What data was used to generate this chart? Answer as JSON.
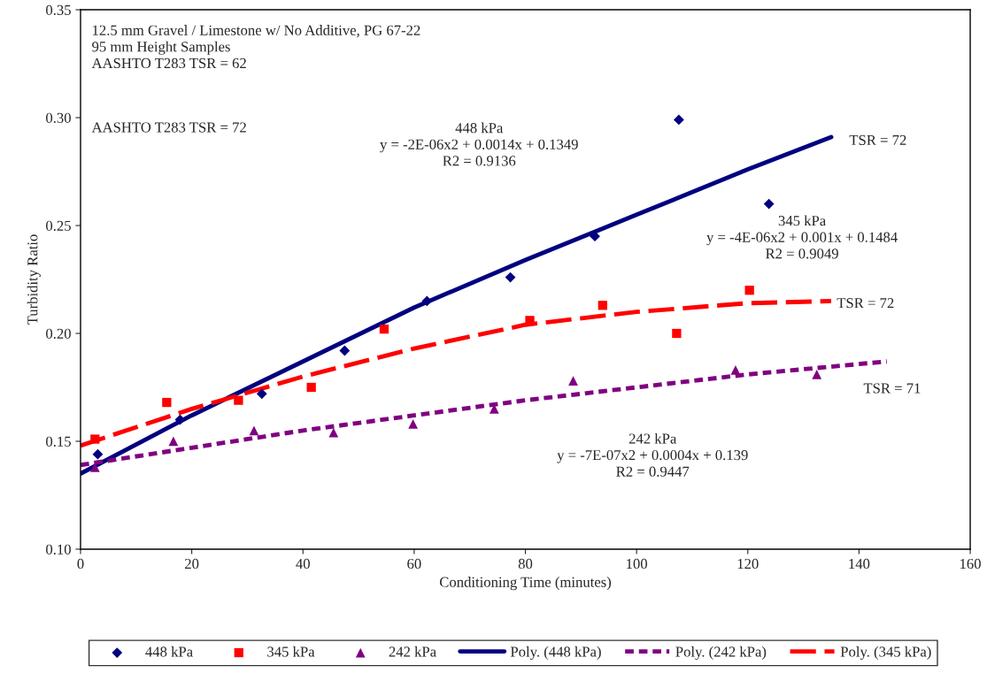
{
  "chart_data": {
    "type": "scatter",
    "xlabel": "Conditioning Time (minutes)",
    "ylabel": "Turbidity Ratio",
    "xlim": [
      0,
      160
    ],
    "xticks": [
      0,
      20,
      40,
      60,
      80,
      100,
      120,
      140,
      160
    ],
    "ylim": [
      0.1,
      0.35
    ],
    "yticks": [
      {
        "value": 0.1,
        "label": "0.10"
      },
      {
        "value": 0.15,
        "label": "0.15"
      },
      {
        "value": 0.2,
        "label": "0.20"
      },
      {
        "value": 0.25,
        "label": "0.25"
      },
      {
        "value": 0.3,
        "label": "0.30"
      },
      {
        "value": 0.35,
        "label": "0.35"
      }
    ],
    "grid": false,
    "legend": "bottom",
    "series": [
      {
        "name": "448 kPa",
        "marker": "diamond",
        "color": "#000080",
        "x": [
          3.1,
          17.9,
          32.6,
          47.5,
          62.3,
          77.3,
          92.5,
          107.6,
          123.8
        ],
        "values": [
          0.144,
          0.16,
          0.172,
          0.192,
          0.215,
          0.226,
          0.245,
          0.299,
          0.26
        ]
      },
      {
        "name": "345 kPa",
        "marker": "square",
        "color": "#ff0000",
        "x": [
          2.6,
          15.5,
          28.4,
          41.5,
          54.6,
          80.8,
          93.9,
          107.2,
          120.3
        ],
        "values": [
          0.151,
          0.168,
          0.169,
          0.175,
          0.202,
          0.206,
          0.213,
          0.2,
          0.22
        ]
      },
      {
        "name": "242 kPa",
        "marker": "triangle",
        "color": "#800080",
        "x": [
          2.6,
          16.7,
          31.2,
          45.5,
          59.8,
          74.4,
          88.6,
          117.8,
          132.4
        ],
        "values": [
          0.138,
          0.15,
          0.155,
          0.154,
          0.158,
          0.165,
          0.178,
          0.183,
          0.181
        ]
      },
      {
        "name": "Poly. (448 kPa)",
        "type": "line",
        "line_style": "solid",
        "color": "#000080",
        "x": [
          0,
          20,
          40,
          60,
          80,
          100,
          120,
          135
        ],
        "values": [
          0.135,
          0.162,
          0.187,
          0.212,
          0.234,
          0.255,
          0.276,
          0.291
        ]
      },
      {
        "name": "Poly. (242 kPa)",
        "type": "line",
        "line_style": "dotted",
        "color": "#800080",
        "x": [
          0,
          20,
          40,
          60,
          80,
          100,
          120,
          145
        ],
        "values": [
          0.139,
          0.147,
          0.155,
          0.162,
          0.169,
          0.175,
          0.181,
          0.187
        ]
      },
      {
        "name": "Poly. (345 kPa)",
        "type": "line",
        "line_style": "dashed",
        "color": "#ff0000",
        "x": [
          0,
          20,
          40,
          60,
          80,
          100,
          120,
          135
        ],
        "values": [
          0.148,
          0.165,
          0.18,
          0.193,
          0.204,
          0.21,
          0.214,
          0.215
        ]
      }
    ],
    "annotations": [
      "12.5 mm Gravel / Limestone w/ No Additive, PG 67-22\n95 mm Height Samples\nAASHTO T283 TSR = 62",
      "AASHTO T283 TSR = 72",
      "448 kPa\ny = -2E-06x2 + 0.0014x + 0.1349\nR2 = 0.9136",
      "345 kPa\ny = -4E-06x2 + 0.001x + 0.1484\nR2 = 0.9049",
      "242 kPa\ny = -7E-07x2 + 0.0004x + 0.139\nR2 = 0.9447",
      "TSR = 72",
      "TSR = 72",
      "TSR = 71"
    ]
  }
}
